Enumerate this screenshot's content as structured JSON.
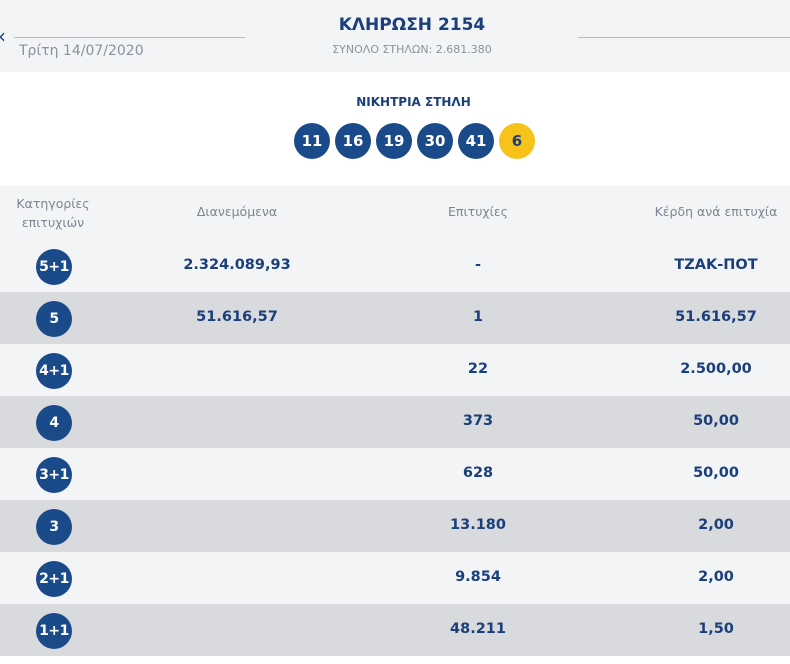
{
  "header": {
    "nav_prev": "‹",
    "date": "Τρίτη 14/07/2020",
    "title": "ΚΛΗΡΩΣΗ 2154",
    "total_columns": "ΣΥΝΟΛΟ ΣΤΗΛΩΝ: 2.681.380"
  },
  "winning": {
    "label": "ΝΙΚΗΤΡΙΑ ΣΤΗΛΗ",
    "numbers": [
      "11",
      "16",
      "19",
      "30",
      "41"
    ],
    "joker": "6",
    "colors": {
      "number_ball": "#1a4a8a",
      "joker_ball": "#f7c21a"
    }
  },
  "table": {
    "headers": {
      "category": "Κατηγορίες επιτυχιών",
      "distributed": "Διανεμόμενα",
      "wins": "Επιτυχίες",
      "prize_per_win": "Κέρδη ανά επιτυχία"
    },
    "rows": [
      {
        "category": "5+1",
        "distributed": "2.324.089,93",
        "wins": "-",
        "prize": "ΤΖΑΚ-ΠΟΤ"
      },
      {
        "category": "5",
        "distributed": "51.616,57",
        "wins": "1",
        "prize": "51.616,57"
      },
      {
        "category": "4+1",
        "distributed": "",
        "wins": "22",
        "prize": "2.500,00"
      },
      {
        "category": "4",
        "distributed": "",
        "wins": "373",
        "prize": "50,00"
      },
      {
        "category": "3+1",
        "distributed": "",
        "wins": "628",
        "prize": "50,00"
      },
      {
        "category": "3",
        "distributed": "",
        "wins": "13.180",
        "prize": "2,00"
      },
      {
        "category": "2+1",
        "distributed": "",
        "wins": "9.854",
        "prize": "2,00"
      },
      {
        "category": "1+1",
        "distributed": "",
        "wins": "48.211",
        "prize": "1,50"
      }
    ]
  },
  "colors": {
    "text_primary": "#1a3f7a",
    "text_muted": "#8a929e",
    "row_light": "#f3f4f6",
    "row_dark": "#d9dadd"
  }
}
